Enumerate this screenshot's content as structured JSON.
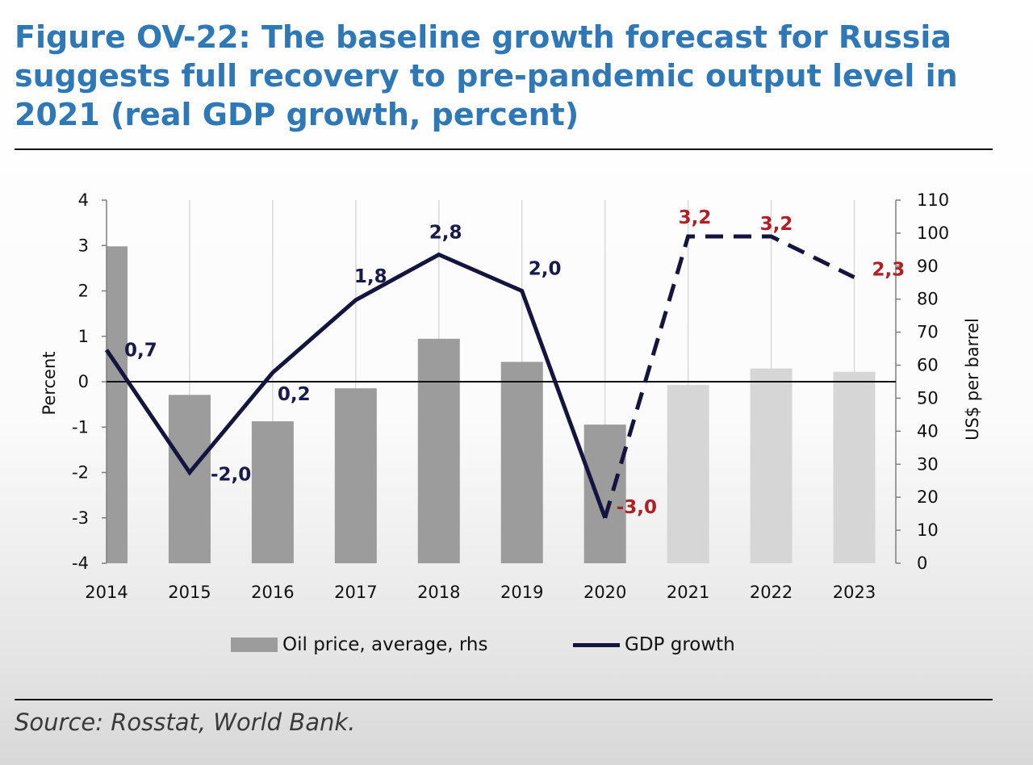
{
  "title": "Figure OV-22: The baseline growth forecast for Russia suggests full recovery to pre-pandemic output level in 2021 (real GDP growth, percent)",
  "source": "Source: Rosstat, World Bank.",
  "colors": {
    "title": "#2e78b7",
    "oil_actual": "#9c9c9d",
    "oil_forecast": "#d6d6d6",
    "gdp_line": "#14143f",
    "label_actual": "#1a1a4a",
    "label_forecast": "#b11e23"
  },
  "chart_data": {
    "type": "bar",
    "categories": [
      "2014",
      "2015",
      "2016",
      "2017",
      "2018",
      "2019",
      "2020",
      "2021",
      "2022",
      "2023"
    ],
    "series": [
      {
        "name": "Oil price, average, rhs",
        "type": "bar",
        "axis": "right",
        "values": [
          96,
          51,
          43,
          53,
          68,
          61,
          42,
          54,
          59,
          58
        ],
        "forecast_from_index": 7
      },
      {
        "name": "GDP growth",
        "type": "line",
        "axis": "left",
        "values": [
          0.7,
          -2.0,
          0.2,
          1.8,
          2.8,
          2.0,
          -3.0,
          3.2,
          3.2,
          2.3
        ],
        "data_labels": [
          "0,7",
          "-2,0",
          "0,2",
          "1,8",
          "2,8",
          "2,0",
          "-3,0",
          "3,2",
          "3,2",
          "2,3"
        ],
        "forecast_from_index": 6
      }
    ],
    "ylabel": "Percent",
    "ylabel_right": "US$ per barrel",
    "ylim": [
      -4,
      4
    ],
    "ylim_right": [
      0,
      110
    ],
    "yticks": [
      "-4",
      "-3",
      "-2",
      "-1",
      "0",
      "1",
      "2",
      "3",
      "4"
    ],
    "yticks_right": [
      "0",
      "10",
      "20",
      "30",
      "40",
      "50",
      "60",
      "70",
      "80",
      "90",
      "100",
      "110"
    ],
    "grid": "vertical",
    "legend": "bottom"
  }
}
